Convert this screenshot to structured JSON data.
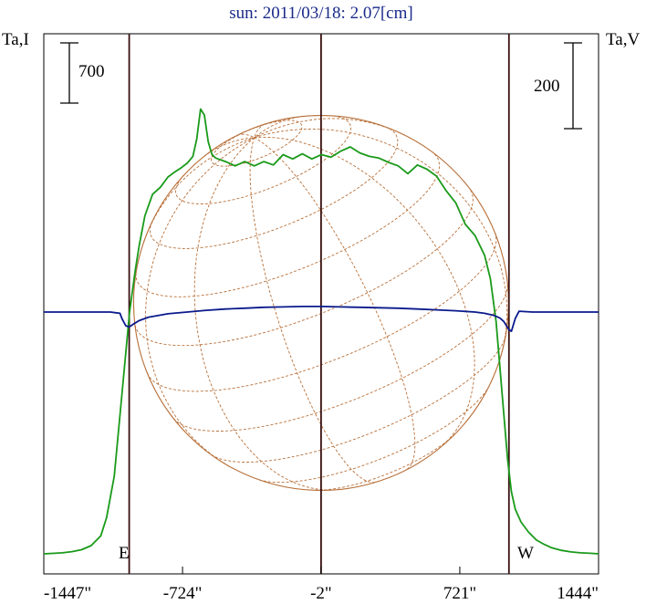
{
  "chart_data": {
    "type": "line",
    "title": "sun: 2011/03/18: 2.07[cm]",
    "ylabel_left": "Ta,I",
    "ylabel_right": "Ta,V",
    "xticks": [
      "-1447\"",
      "-724\"",
      "-2\"",
      "721\"",
      "1444\""
    ],
    "xtick_values": [
      -1447,
      -724,
      -2,
      721,
      1444
    ],
    "xlim": [
      -1447,
      1444
    ],
    "scale_left": {
      "label": "700",
      "value": 700
    },
    "scale_right": {
      "label": "200",
      "value": 200
    },
    "limb_labels": {
      "east": "E",
      "west": "W"
    },
    "vlines_arcsec": [
      -1002,
      -2,
      977
    ],
    "solar_radius_arcsec": 977,
    "colors": {
      "I": "#1a9a1a",
      "V": "#0a1a8c",
      "grid": "#b8703a",
      "vline": "#3a1010"
    },
    "series": [
      {
        "name": "I",
        "x": [
          -1447,
          -1400,
          -1350,
          -1300,
          -1250,
          -1200,
          -1150,
          -1120,
          -1080,
          -1040,
          -1000,
          -970,
          -950,
          -920,
          -880,
          -840,
          -800,
          -770,
          -730,
          -700,
          -670,
          -650,
          -630,
          -610,
          -590,
          -570,
          -550,
          -500,
          -450,
          -400,
          -350,
          -300,
          -250,
          -200,
          -150,
          -100,
          -50,
          0,
          50,
          100,
          150,
          200,
          250,
          300,
          350,
          400,
          450,
          500,
          550,
          600,
          650,
          700,
          750,
          800,
          850,
          880,
          910,
          940,
          970,
          990,
          1010,
          1040,
          1080,
          1120,
          1160,
          1200,
          1250,
          1300,
          1350,
          1400,
          1444
        ],
        "values": [
          0,
          5,
          12,
          25,
          48,
          95,
          210,
          420,
          900,
          1850,
          2810,
          3300,
          3580,
          3930,
          4180,
          4260,
          4380,
          4430,
          4490,
          4540,
          4620,
          4820,
          5170,
          5100,
          4790,
          4640,
          4600,
          4560,
          4510,
          4560,
          4510,
          4560,
          4520,
          4640,
          4590,
          4650,
          4590,
          4640,
          4610,
          4680,
          4730,
          4660,
          4620,
          4600,
          4550,
          4510,
          4420,
          4520,
          4470,
          4390,
          4220,
          4080,
          3830,
          3700,
          3470,
          3200,
          2700,
          1900,
          1100,
          720,
          520,
          370,
          250,
          160,
          110,
          70,
          40,
          22,
          12,
          6,
          0
        ]
      },
      {
        "name": "V",
        "x": [
          -1447,
          -1250,
          -1100,
          -1050,
          -1040,
          -1020,
          -1002,
          -980,
          -950,
          -900,
          -850,
          -800,
          -700,
          -600,
          -500,
          -400,
          -300,
          -200,
          -100,
          0,
          100,
          200,
          300,
          400,
          500,
          600,
          700,
          800,
          850,
          900,
          930,
          950,
          975,
          990,
          1010,
          1030,
          1100,
          1250,
          1444
        ],
        "values": [
          0,
          0,
          0,
          -3,
          -15,
          -32,
          -35,
          -28,
          -20,
          -12,
          -8,
          -4,
          0,
          4,
          7,
          9,
          11,
          12,
          13,
          13,
          12,
          11,
          10,
          9,
          7,
          5,
          3,
          0,
          -3,
          -8,
          -14,
          -22,
          -40,
          -45,
          -15,
          2,
          0,
          0,
          0
        ]
      }
    ]
  }
}
